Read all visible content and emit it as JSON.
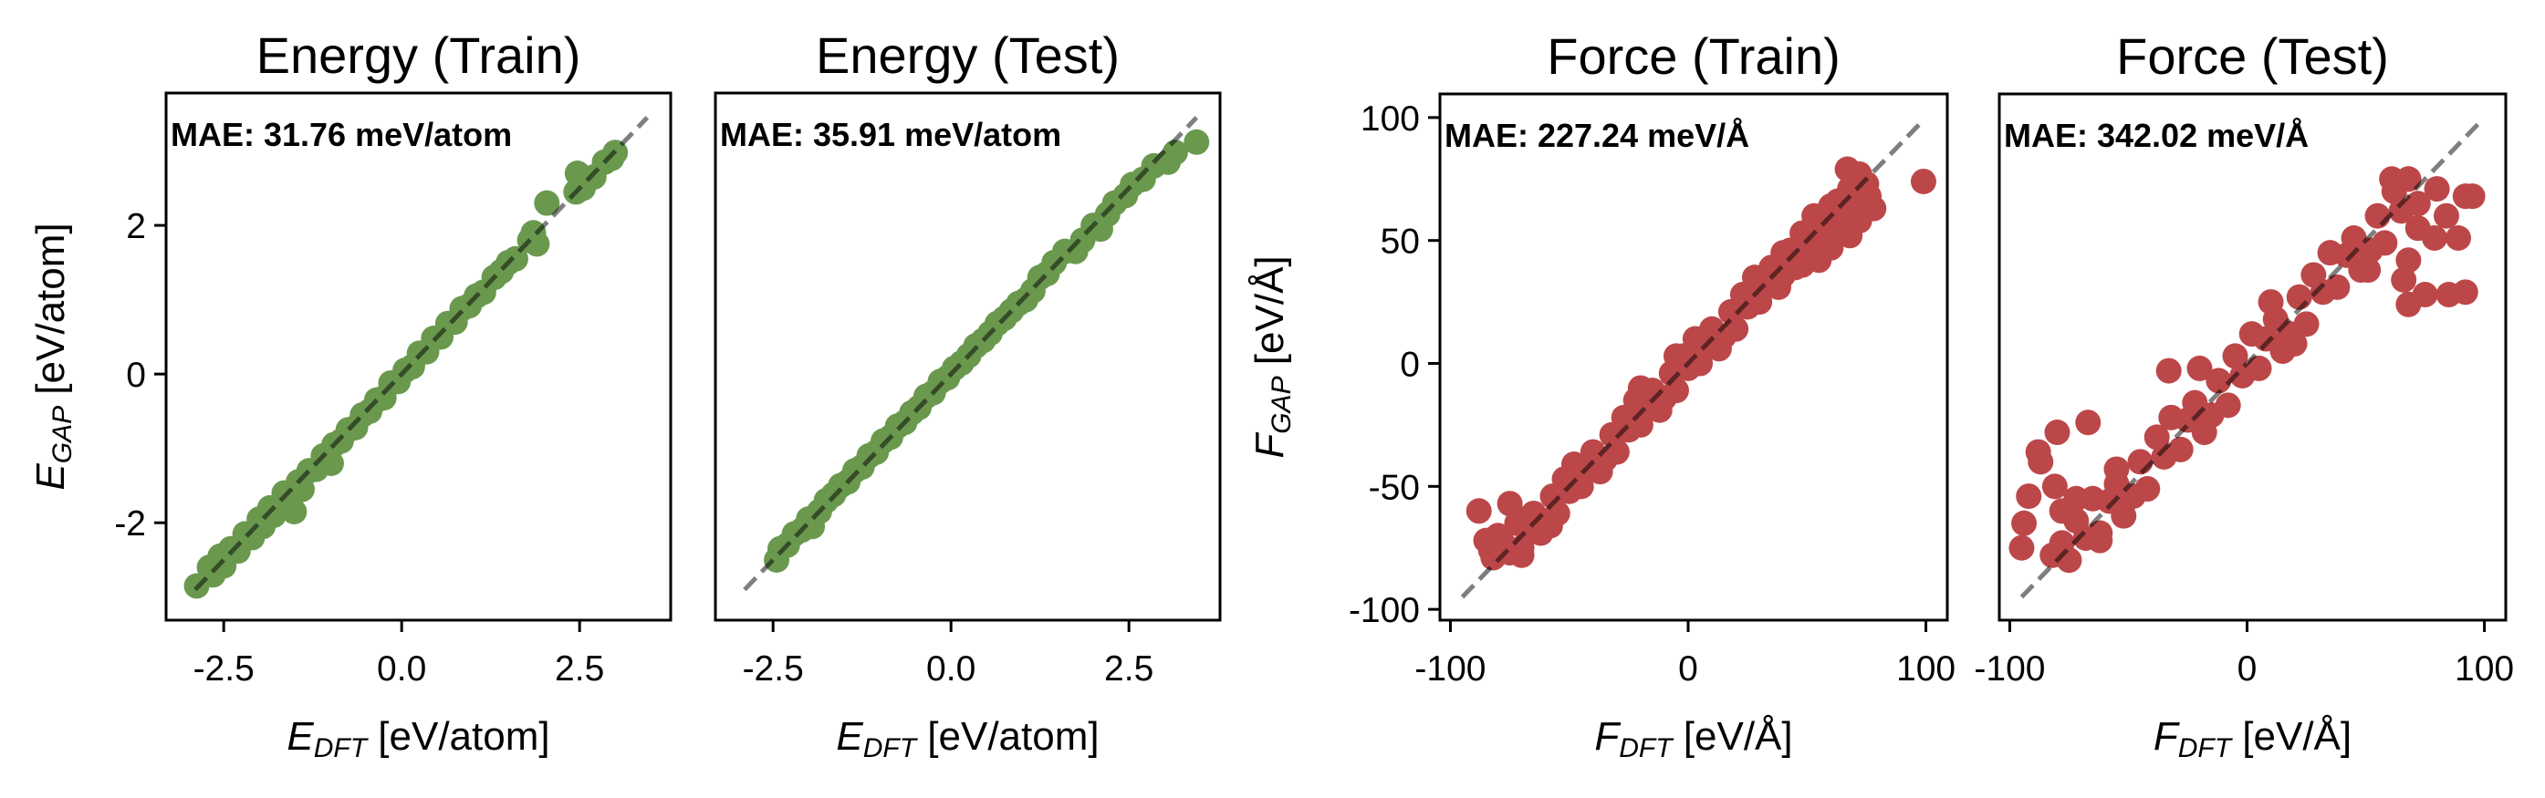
{
  "chart_data": [
    {
      "type": "scatter",
      "title": "Energy (Train)",
      "xlabel": {
        "var": "E",
        "sub": "DFT",
        "unit": "[eV/atom]"
      },
      "ylabel": {
        "var": "E",
        "sub": "GAP",
        "unit": "[eV/atom]"
      },
      "annotation": "MAE: 31.76 meV/atom",
      "color": "#6a994e",
      "xlim": [
        -3.31,
        3.78
      ],
      "ylim": [
        -3.31,
        3.78
      ],
      "xticks": {
        "values": [
          -2.5,
          0,
          2.5
        ],
        "labels": [
          "-2.5",
          "0.0",
          "2.5"
        ]
      },
      "yticks": {
        "values": [
          -2,
          0,
          2
        ],
        "labels": [
          "-2",
          "0",
          "2"
        ]
      },
      "reference_line": {
        "style": "dashed",
        "from": -2.9,
        "to": 3.45
      },
      "points": [
        [
          -2.88,
          -2.85
        ],
        [
          -2.7,
          -2.6
        ],
        [
          -2.65,
          -2.7
        ],
        [
          -2.55,
          -2.45
        ],
        [
          -2.5,
          -2.58
        ],
        [
          -2.4,
          -2.35
        ],
        [
          -2.3,
          -2.38
        ],
        [
          -2.2,
          -2.15
        ],
        [
          -2.1,
          -2.2
        ],
        [
          -2.0,
          -1.95
        ],
        [
          -1.95,
          -2.05
        ],
        [
          -1.85,
          -1.8
        ],
        [
          -1.8,
          -1.9
        ],
        [
          -1.7,
          -1.75
        ],
        [
          -1.65,
          -1.6
        ],
        [
          -1.55,
          -1.65
        ],
        [
          -1.51,
          -1.85
        ],
        [
          -1.45,
          -1.45
        ],
        [
          -1.4,
          -1.55
        ],
        [
          -1.3,
          -1.3
        ],
        [
          -1.2,
          -1.28
        ],
        [
          -1.1,
          -1.1
        ],
        [
          -0.99,
          -1.2
        ],
        [
          -0.95,
          -0.95
        ],
        [
          -0.85,
          -0.9
        ],
        [
          -0.75,
          -0.75
        ],
        [
          -0.65,
          -0.72
        ],
        [
          -0.55,
          -0.55
        ],
        [
          -0.45,
          -0.5
        ],
        [
          -0.35,
          -0.35
        ],
        [
          -0.25,
          -0.32
        ],
        [
          -0.15,
          -0.12
        ],
        [
          -0.05,
          -0.1
        ],
        [
          0.05,
          0.05
        ],
        [
          0.15,
          0.1
        ],
        [
          0.25,
          0.28
        ],
        [
          0.35,
          0.3
        ],
        [
          0.45,
          0.48
        ],
        [
          0.55,
          0.5
        ],
        [
          0.65,
          0.68
        ],
        [
          0.75,
          0.7
        ],
        [
          0.85,
          0.88
        ],
        [
          0.95,
          0.92
        ],
        [
          1.05,
          1.05
        ],
        [
          1.15,
          1.1
        ],
        [
          1.3,
          1.3
        ],
        [
          1.4,
          1.38
        ],
        [
          1.5,
          1.5
        ],
        [
          1.6,
          1.55
        ],
        [
          1.8,
          1.8
        ],
        [
          1.9,
          1.75
        ],
        [
          1.85,
          1.9
        ],
        [
          2.04,
          2.3
        ],
        [
          2.45,
          2.45
        ],
        [
          2.55,
          2.5
        ],
        [
          2.47,
          2.7
        ],
        [
          2.7,
          2.65
        ],
        [
          2.85,
          2.85
        ],
        [
          2.95,
          2.9
        ],
        [
          3.0,
          2.98
        ]
      ]
    },
    {
      "type": "scatter",
      "title": "Energy (Test)",
      "xlabel": {
        "var": "E",
        "sub": "DFT",
        "unit": "[eV/atom]"
      },
      "ylabel": null,
      "annotation": "MAE: 35.91 meV/atom",
      "color": "#6a994e",
      "xlim": [
        -3.31,
        3.78
      ],
      "ylim": [
        -3.31,
        3.78
      ],
      "xticks": {
        "values": [
          -2.5,
          0,
          2.5
        ],
        "labels": [
          "-2.5",
          "0.0",
          "2.5"
        ]
      },
      "yticks": null,
      "reference_line": {
        "style": "dashed",
        "from": -2.9,
        "to": 3.45
      },
      "points": [
        [
          -2.45,
          -2.5
        ],
        [
          -2.4,
          -2.35
        ],
        [
          -2.3,
          -2.3
        ],
        [
          -2.2,
          -2.15
        ],
        [
          -2.1,
          -2.1
        ],
        [
          -2.0,
          -1.95
        ],
        [
          -1.95,
          -2.05
        ],
        [
          -1.85,
          -1.85
        ],
        [
          -1.75,
          -1.7
        ],
        [
          -1.65,
          -1.62
        ],
        [
          -1.55,
          -1.5
        ],
        [
          -1.45,
          -1.45
        ],
        [
          -1.35,
          -1.3
        ],
        [
          -1.25,
          -1.25
        ],
        [
          -1.15,
          -1.1
        ],
        [
          -1.05,
          -1.05
        ],
        [
          -0.95,
          -0.9
        ],
        [
          -0.85,
          -0.85
        ],
        [
          -0.75,
          -0.7
        ],
        [
          -0.65,
          -0.65
        ],
        [
          -0.55,
          -0.52
        ],
        [
          -0.45,
          -0.45
        ],
        [
          -0.35,
          -0.3
        ],
        [
          -0.25,
          -0.25
        ],
        [
          -0.15,
          -0.1
        ],
        [
          -0.05,
          -0.05
        ],
        [
          0.05,
          0.08
        ],
        [
          0.15,
          0.15
        ],
        [
          0.25,
          0.25
        ],
        [
          0.35,
          0.38
        ],
        [
          0.45,
          0.45
        ],
        [
          0.55,
          0.55
        ],
        [
          0.65,
          0.68
        ],
        [
          0.75,
          0.75
        ],
        [
          0.85,
          0.85
        ],
        [
          0.95,
          0.95
        ],
        [
          1.05,
          1.0
        ],
        [
          1.15,
          1.12
        ],
        [
          1.25,
          1.3
        ],
        [
          1.35,
          1.35
        ],
        [
          1.45,
          1.5
        ],
        [
          1.6,
          1.65
        ],
        [
          1.75,
          1.65
        ],
        [
          1.85,
          1.8
        ],
        [
          2.0,
          2.0
        ],
        [
          2.1,
          1.95
        ],
        [
          2.2,
          2.15
        ],
        [
          2.3,
          2.3
        ],
        [
          2.45,
          2.4
        ],
        [
          2.55,
          2.55
        ],
        [
          2.7,
          2.62
        ],
        [
          2.85,
          2.8
        ],
        [
          3.15,
          2.98
        ],
        [
          3.05,
          2.85
        ],
        [
          3.45,
          3.12
        ]
      ]
    },
    {
      "type": "scatter",
      "title": "Force (Train)",
      "xlabel": {
        "var": "F",
        "sub": "DFT",
        "unit": "[eV/Å]"
      },
      "ylabel": {
        "var": "F",
        "sub": "GAP",
        "unit": "[eV/Å]"
      },
      "annotation": "MAE: 227.24 meV/Å",
      "color": "#bc4749",
      "xlim": [
        -104.4,
        109
      ],
      "ylim": [
        -104.4,
        109.6
      ],
      "xticks": {
        "values": [
          -100,
          0,
          100
        ],
        "labels": [
          "-100",
          "0",
          "100"
        ]
      },
      "yticks": {
        "values": [
          -100,
          -50,
          0,
          50,
          100
        ],
        "labels": [
          "-100",
          "-50",
          "0",
          "50",
          "100"
        ]
      },
      "reference_line": {
        "style": "dashed",
        "from": -95,
        "to": 98
      },
      "points": [
        [
          -85,
          -72
        ],
        [
          -82,
          -79
        ],
        [
          -80,
          -70
        ],
        [
          -78,
          -73
        ],
        [
          -75,
          -77
        ],
        [
          -72,
          -65
        ],
        [
          -70,
          -75
        ],
        [
          -68,
          -67
        ],
        [
          -65,
          -61
        ],
        [
          -62,
          -69
        ],
        [
          -60,
          -64
        ],
        [
          -57,
          -54
        ],
        [
          -55,
          -61
        ],
        [
          -52,
          -47
        ],
        [
          -50,
          -52
        ],
        [
          -48,
          -41
        ],
        [
          -45,
          -50
        ],
        [
          -42,
          -41
        ],
        [
          -40,
          -36
        ],
        [
          -37,
          -44
        ],
        [
          -35,
          -39
        ],
        [
          -32,
          -29
        ],
        [
          -30,
          -36
        ],
        [
          -27,
          -22
        ],
        [
          -25,
          -27
        ],
        [
          -22,
          -15
        ],
        [
          -20,
          -25
        ],
        [
          -17,
          -16
        ],
        [
          -15,
          -11
        ],
        [
          -12,
          -19
        ],
        [
          -10,
          -14
        ],
        [
          -7,
          -4
        ],
        [
          -5,
          -11
        ],
        [
          -2,
          3
        ],
        [
          0,
          -2
        ],
        [
          3,
          10
        ],
        [
          5,
          0
        ],
        [
          8,
          9
        ],
        [
          10,
          14
        ],
        [
          13,
          6
        ],
        [
          15,
          11
        ],
        [
          18,
          21
        ],
        [
          20,
          14
        ],
        [
          23,
          28
        ],
        [
          25,
          23
        ],
        [
          28,
          35
        ],
        [
          30,
          25
        ],
        [
          33,
          34
        ],
        [
          35,
          39
        ],
        [
          38,
          31
        ],
        [
          40,
          36
        ],
        [
          43,
          46
        ],
        [
          45,
          39
        ],
        [
          48,
          53
        ],
        [
          50,
          48
        ],
        [
          53,
          60
        ],
        [
          55,
          50
        ],
        [
          58,
          59
        ],
        [
          60,
          64
        ],
        [
          63,
          56
        ],
        [
          65,
          61
        ],
        [
          68,
          71
        ],
        [
          70,
          64
        ],
        [
          72,
          77
        ],
        [
          75,
          73
        ],
        [
          -88,
          -60
        ],
        [
          -83,
          -76
        ],
        [
          -75,
          -57
        ],
        [
          -70,
          -78
        ],
        [
          -66,
          -62
        ],
        [
          -58,
          -66
        ],
        [
          99,
          74
        ],
        [
          67,
          79
        ],
        [
          78,
          63
        ],
        [
          68,
          52
        ],
        [
          72,
          58
        ],
        [
          76,
          68
        ],
        [
          60,
          47
        ],
        [
          55,
          42
        ],
        [
          63,
          66
        ],
        [
          70,
          60
        ],
        [
          48,
          40
        ],
        [
          40,
          45
        ],
        [
          -20,
          -10
        ],
        [
          -5,
          3
        ]
      ]
    },
    {
      "type": "scatter",
      "title": "Force (Test)",
      "xlabel": {
        "var": "F",
        "sub": "DFT",
        "unit": "[eV/Å]"
      },
      "ylabel": null,
      "annotation": "MAE: 342.02 meV/Å",
      "color": "#bc4749",
      "xlim": [
        -104.4,
        109
      ],
      "ylim": [
        -104.4,
        109.6
      ],
      "xticks": {
        "values": [
          -100,
          0,
          100
        ],
        "labels": [
          "-100",
          "0",
          "100"
        ]
      },
      "yticks": null,
      "reference_line": {
        "style": "dashed",
        "from": -95,
        "to": 98
      },
      "points": [
        [
          -82,
          -78
        ],
        [
          -78,
          -73
        ],
        [
          -75,
          -80
        ],
        [
          -72,
          -64
        ],
        [
          -68,
          -71
        ],
        [
          -65,
          -55
        ],
        [
          -62,
          -69
        ],
        [
          -58,
          -56
        ],
        [
          -55,
          -49
        ],
        [
          -52,
          -62
        ],
        [
          -48,
          -54
        ],
        [
          -45,
          -40
        ],
        [
          -42,
          -51
        ],
        [
          -38,
          -30
        ],
        [
          -35,
          -38
        ],
        [
          -32,
          -22
        ],
        [
          -28,
          -35
        ],
        [
          -25,
          -23
        ],
        [
          -22,
          -16
        ],
        [
          -18,
          -28
        ],
        [
          -15,
          -21
        ],
        [
          -12,
          -7
        ],
        [
          -8,
          -17
        ],
        [
          -5,
          3
        ],
        [
          -2,
          -5
        ],
        [
          2,
          12
        ],
        [
          5,
          -2
        ],
        [
          8,
          10
        ],
        [
          12,
          18
        ],
        [
          15,
          5
        ],
        [
          18,
          12
        ],
        [
          22,
          27
        ],
        [
          25,
          16
        ],
        [
          28,
          36
        ],
        [
          32,
          29
        ],
        [
          35,
          45
        ],
        [
          38,
          31
        ],
        [
          42,
          44
        ],
        [
          45,
          51
        ],
        [
          48,
          38
        ],
        [
          52,
          46
        ],
        [
          55,
          60
        ],
        [
          58,
          49
        ],
        [
          62,
          70
        ],
        [
          65,
          62
        ],
        [
          68,
          75
        ],
        [
          72,
          65
        ],
        [
          -95,
          -75
        ],
        [
          -94,
          -65
        ],
        [
          -92,
          -54
        ],
        [
          -88,
          -36
        ],
        [
          -80,
          -28
        ],
        [
          -87,
          -40
        ],
        [
          -81,
          -50
        ],
        [
          -67,
          -24
        ],
        [
          -33,
          -3
        ],
        [
          -62,
          -72
        ],
        [
          -55,
          -43
        ],
        [
          -78,
          -60
        ],
        [
          -72,
          -55
        ],
        [
          92,
          68
        ],
        [
          95,
          68
        ],
        [
          84,
          60
        ],
        [
          89,
          51
        ],
        [
          79,
          51
        ],
        [
          92,
          29
        ],
        [
          85,
          28
        ],
        [
          75,
          28
        ],
        [
          68,
          24
        ],
        [
          66,
          34
        ],
        [
          68,
          42
        ],
        [
          80,
          71
        ],
        [
          68,
          75
        ],
        [
          51,
          38
        ],
        [
          61,
          75
        ],
        [
          72,
          55
        ],
        [
          -20,
          -2
        ],
        [
          10,
          25
        ],
        [
          20,
          8
        ]
      ]
    }
  ]
}
